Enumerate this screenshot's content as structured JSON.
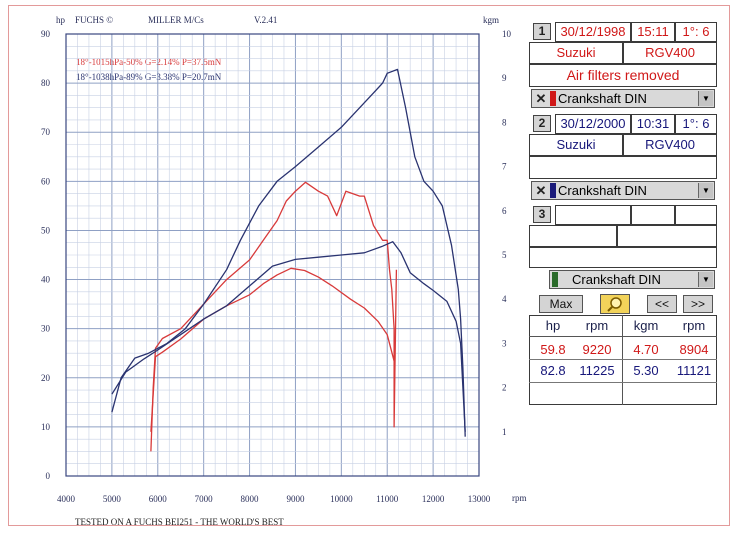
{
  "header": {
    "left": "FUCHS ©",
    "center": "MILLER M/Cs",
    "version": "V.2.41",
    "left_unit": "hp",
    "right_unit": "kgm",
    "x_unit": "rpm"
  },
  "footer": "TESTED ON A FUCHS BEI251 - THE WORLD'S BEST",
  "legend": [
    {
      "text": "18°-1015hPa-50% G=2.14% P=37.5mN",
      "color": "#d83a3a"
    },
    {
      "text": "18°-1038hPa-89% G=3.38% P=20.7mN",
      "color": "#2a3370"
    }
  ],
  "panel": {
    "run1": {
      "index": "1",
      "date": "30/12/1998",
      "time": "15:11",
      "ratio": "1°: 6",
      "make": "Suzuki",
      "model": "RGV400",
      "note": "Air filters removed",
      "curve": "Crankshaft DIN",
      "swatch": "#d01818"
    },
    "run2": {
      "index": "2",
      "date": "30/12/2000",
      "time": "10:31",
      "ratio": "1°: 6",
      "make": "Suzuki",
      "model": "RGV400",
      "note": "",
      "curve": "Crankshaft DIN",
      "swatch": "#1a1a7a"
    },
    "run3": {
      "index": "3",
      "curve": "Crankshaft DIN",
      "swatch": "#2a6a2a"
    },
    "buttons": {
      "max": "Max",
      "prev": "<<",
      "next": ">>"
    },
    "max_table": {
      "headers": [
        "hp",
        "rpm",
        "kgm",
        "rpm"
      ],
      "rows": [
        {
          "hp": "59.8",
          "rpm": "9220",
          "kgm": "4.70",
          "rpm2": "8904",
          "color": "#d01818"
        },
        {
          "hp": "82.8",
          "rpm": "11225",
          "kgm": "5.30",
          "rpm2": "11121",
          "color": "#17177a"
        }
      ]
    }
  },
  "chart_data": {
    "type": "line",
    "xlabel": "rpm",
    "ylabel": "hp",
    "y2label": "kgm",
    "xlim": [
      4000,
      13000
    ],
    "ylim": [
      0,
      90
    ],
    "y2lim": [
      0,
      10
    ],
    "x_ticks": [
      4000,
      5000,
      6000,
      7000,
      8000,
      9000,
      10000,
      11000,
      12000,
      13000
    ],
    "y_ticks": [
      0,
      10,
      20,
      30,
      40,
      50,
      60,
      70,
      80,
      90
    ],
    "y2_ticks": [
      1,
      2,
      3,
      4,
      5,
      6,
      7,
      8,
      9,
      10
    ],
    "grid": true,
    "series": [
      {
        "color": "#d83a3a",
        "axis": "hp",
        "points": [
          [
            5850,
            5
          ],
          [
            5900,
            18
          ],
          [
            5950,
            26
          ],
          [
            6100,
            28
          ],
          [
            6500,
            30
          ],
          [
            7000,
            35
          ],
          [
            7500,
            40
          ],
          [
            8000,
            44
          ],
          [
            8300,
            48
          ],
          [
            8600,
            52
          ],
          [
            8800,
            56
          ],
          [
            9000,
            58
          ],
          [
            9220,
            59.8
          ],
          [
            9500,
            58
          ],
          [
            9700,
            57
          ],
          [
            9900,
            53
          ],
          [
            10100,
            58
          ],
          [
            10400,
            57
          ],
          [
            10500,
            57
          ],
          [
            10700,
            51
          ],
          [
            10900,
            48
          ],
          [
            11000,
            48
          ],
          [
            11050,
            42
          ],
          [
            11100,
            38
          ],
          [
            11150,
            30
          ],
          [
            11150,
            10
          ],
          [
            11200,
            42
          ]
        ]
      },
      {
        "color": "#d83a3a",
        "axis": "kgm",
        "points": [
          [
            5850,
            1.0
          ],
          [
            5950,
            2.7
          ],
          [
            6100,
            2.8
          ],
          [
            6500,
            3.1
          ],
          [
            7000,
            3.55
          ],
          [
            7500,
            3.85
          ],
          [
            8000,
            4.1
          ],
          [
            8300,
            4.35
          ],
          [
            8600,
            4.55
          ],
          [
            8904,
            4.7
          ],
          [
            9200,
            4.65
          ],
          [
            9500,
            4.5
          ],
          [
            9800,
            4.3
          ],
          [
            10200,
            4.0
          ],
          [
            10500,
            3.8
          ],
          [
            10800,
            3.5
          ],
          [
            11000,
            3.2
          ],
          [
            11150,
            2.6
          ]
        ]
      },
      {
        "color": "#2a3370",
        "axis": "hp",
        "points": [
          [
            5000,
            13
          ],
          [
            5200,
            20
          ],
          [
            5500,
            24
          ],
          [
            5800,
            25
          ],
          [
            6200,
            27
          ],
          [
            6600,
            30
          ],
          [
            7000,
            35
          ],
          [
            7500,
            42
          ],
          [
            7800,
            48
          ],
          [
            8200,
            55
          ],
          [
            8600,
            60
          ],
          [
            9000,
            63
          ],
          [
            9500,
            67
          ],
          [
            10000,
            71
          ],
          [
            10400,
            75
          ],
          [
            10700,
            78
          ],
          [
            10900,
            80
          ],
          [
            11000,
            82
          ],
          [
            11225,
            82.8
          ],
          [
            11400,
            75
          ],
          [
            11600,
            65
          ],
          [
            11800,
            60
          ],
          [
            12000,
            58
          ],
          [
            12200,
            55
          ],
          [
            12400,
            47
          ],
          [
            12550,
            38
          ],
          [
            12600,
            32
          ],
          [
            12650,
            22
          ],
          [
            12700,
            8
          ]
        ]
      },
      {
        "color": "#2a3370",
        "axis": "kgm",
        "points": [
          [
            5000,
            1.85
          ],
          [
            5300,
            2.35
          ],
          [
            5700,
            2.65
          ],
          [
            6000,
            2.85
          ],
          [
            6500,
            3.2
          ],
          [
            7000,
            3.55
          ],
          [
            7500,
            3.85
          ],
          [
            8000,
            4.3
          ],
          [
            8500,
            4.75
          ],
          [
            9000,
            4.9
          ],
          [
            9500,
            4.95
          ],
          [
            10000,
            5.0
          ],
          [
            10500,
            5.05
          ],
          [
            10900,
            5.2
          ],
          [
            11121,
            5.3
          ],
          [
            11300,
            5.05
          ],
          [
            11500,
            4.6
          ],
          [
            11800,
            4.35
          ],
          [
            12000,
            4.2
          ],
          [
            12300,
            3.95
          ],
          [
            12500,
            3.5
          ],
          [
            12600,
            3.0
          ],
          [
            12700,
            1.0
          ]
        ]
      }
    ]
  }
}
